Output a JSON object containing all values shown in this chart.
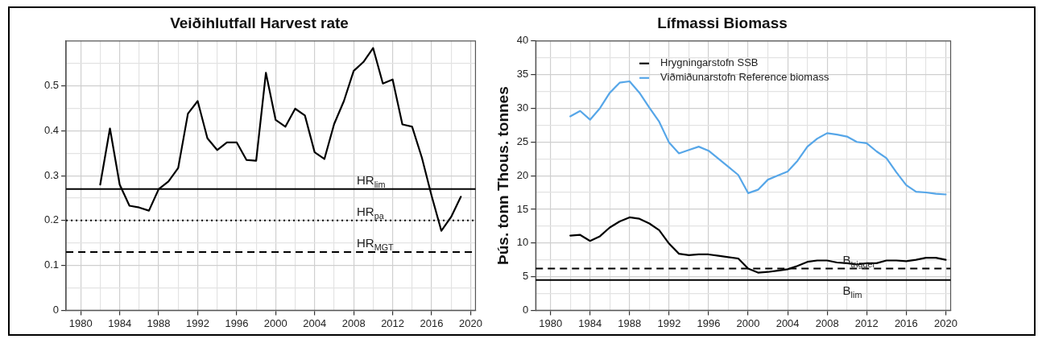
{
  "chart_data": [
    {
      "type": "line",
      "title": "Veiðihlutfall Harvest rate",
      "x": [
        1982,
        1983,
        1984,
        1985,
        1986,
        1987,
        1988,
        1989,
        1990,
        1991,
        1992,
        1993,
        1994,
        1995,
        1996,
        1997,
        1998,
        1999,
        2000,
        2001,
        2002,
        2003,
        2004,
        2005,
        2006,
        2007,
        2008,
        2009,
        2010,
        2011,
        2012,
        2013,
        2014,
        2015,
        2016,
        2017,
        2018,
        2019
      ],
      "series": [
        {
          "color": "#000000",
          "values": [
            0.28,
            0.405,
            0.28,
            0.233,
            0.229,
            0.222,
            0.27,
            0.287,
            0.317,
            0.438,
            0.466,
            0.383,
            0.357,
            0.374,
            0.374,
            0.335,
            0.333,
            0.529,
            0.424,
            0.409,
            0.449,
            0.434,
            0.352,
            0.337,
            0.415,
            0.466,
            0.533,
            0.553,
            0.584,
            0.505,
            0.514,
            0.414,
            0.409,
            0.34,
            0.255,
            0.177,
            0.208,
            0.253
          ]
        }
      ],
      "xlim": [
        1978.5,
        2020.5
      ],
      "xticks": [
        1980,
        {
          "value": 1982,
          "label": null
        },
        1984,
        {
          "value": 1986,
          "label": null
        },
        1988,
        {
          "value": 1990,
          "label": null
        },
        1992,
        {
          "value": 1994,
          "label": null
        },
        1996,
        {
          "value": 1998,
          "label": null
        },
        2000,
        {
          "value": 2002,
          "label": null
        },
        2004,
        {
          "value": 2006,
          "label": null
        },
        2008,
        {
          "value": 2010,
          "label": null
        },
        2012,
        {
          "value": 2014,
          "label": null
        },
        2016,
        {
          "value": 2018,
          "label": null
        },
        2020
      ],
      "ylim": [
        0,
        0.6
      ],
      "yticks": [
        0,
        {
          "value": 0.05,
          "label": null
        },
        0.1,
        {
          "value": 0.15,
          "label": null
        },
        0.2,
        {
          "value": 0.25,
          "label": null
        },
        0.3,
        {
          "value": 0.35,
          "label": null
        },
        0.4,
        {
          "value": 0.45,
          "label": null
        },
        0.5,
        {
          "value": 0.55,
          "label": null
        }
      ],
      "ref_lines": [
        {
          "axis": "y",
          "value": 0.27,
          "label": "HR$_{lim}$",
          "color": "#000000",
          "line_style": "solid"
        },
        {
          "axis": "y",
          "value": 0.2,
          "label": "HR$_{pa}$",
          "color": "#000000",
          "line_style": "dotted"
        },
        {
          "axis": "y",
          "value": 0.13,
          "label": "HR$_{MGT}$",
          "color": "#000000",
          "line_style": "dashed"
        }
      ],
      "grid": true,
      "legend": false,
      "marker": "none",
      "line_style": "solid"
    },
    {
      "type": "line",
      "title": "Lífmassi Biomass",
      "ylabel": "Þús. tonn Thous. tonnes",
      "x": [
        1982,
        1983,
        1984,
        1985,
        1986,
        1987,
        1988,
        1989,
        1990,
        1991,
        1992,
        1993,
        1994,
        1995,
        1996,
        1997,
        1998,
        1999,
        2000,
        2001,
        2002,
        2003,
        2004,
        2005,
        2006,
        2007,
        2008,
        2009,
        2010,
        2011,
        2012,
        2013,
        2014,
        2015,
        2016,
        2017,
        2018,
        2019,
        2020
      ],
      "series": [
        {
          "name": "Hrygningarstofn SSB",
          "color": "#000000",
          "values": [
            11.1,
            11.2,
            10.3,
            11.0,
            12.3,
            13.2,
            13.8,
            13.6,
            12.9,
            11.9,
            9.9,
            8.4,
            8.2,
            8.3,
            8.3,
            8.1,
            7.9,
            7.7,
            6.2,
            5.6,
            5.7,
            5.9,
            6.1,
            6.6,
            7.2,
            7.4,
            7.4,
            7.1,
            7.0,
            6.8,
            7.0,
            7.0,
            7.4,
            7.4,
            7.3,
            7.5,
            7.8,
            7.8,
            7.5
          ]
        },
        {
          "name": "Viðmiðunarstofn Reference biomass",
          "color": "#56a6e8",
          "values": [
            28.8,
            29.6,
            28.3,
            30.0,
            32.3,
            33.8,
            34.0,
            32.3,
            30.1,
            28.0,
            24.9,
            23.3,
            23.8,
            24.3,
            23.7,
            22.5,
            21.3,
            20.1,
            17.4,
            17.9,
            19.4,
            20.0,
            20.6,
            22.2,
            24.3,
            25.5,
            26.3,
            26.1,
            25.8,
            25.0,
            24.8,
            23.6,
            22.6,
            20.5,
            18.6,
            17.6,
            17.5,
            17.3,
            17.2
          ]
        }
      ],
      "xlim": [
        1978.5,
        2020.5
      ],
      "xticks": [
        1980,
        {
          "value": 1982,
          "label": null
        },
        1984,
        {
          "value": 1986,
          "label": null
        },
        1988,
        {
          "value": 1990,
          "label": null
        },
        1992,
        {
          "value": 1994,
          "label": null
        },
        1996,
        {
          "value": 1998,
          "label": null
        },
        2000,
        {
          "value": 2002,
          "label": null
        },
        2004,
        {
          "value": 2006,
          "label": null
        },
        2008,
        {
          "value": 2010,
          "label": null
        },
        2012,
        {
          "value": 2014,
          "label": null
        },
        2016,
        {
          "value": 2018,
          "label": null
        },
        2020
      ],
      "ylim": [
        0,
        40
      ],
      "yticks": [
        0,
        {
          "value": 2.5,
          "label": null
        },
        5,
        {
          "value": 7.5,
          "label": null
        },
        10,
        {
          "value": 12.5,
          "label": null
        },
        15,
        {
          "value": 17.5,
          "label": null
        },
        20,
        {
          "value": 22.5,
          "label": null
        },
        25,
        {
          "value": 27.5,
          "label": null
        },
        30,
        {
          "value": 32.5,
          "label": null
        },
        35,
        {
          "value": 37.5,
          "label": null
        },
        40
      ],
      "ref_lines": [
        {
          "axis": "y",
          "value": 6.2,
          "label": "B$_{trigger}$",
          "color": "#000000",
          "line_style": "dashed"
        },
        {
          "axis": "y",
          "value": 4.5,
          "label": "B$_{lim}$",
          "color": "#000000",
          "line_style": "solid"
        }
      ],
      "grid": true,
      "legend": "top left",
      "marker": "none",
      "line_style": "solid"
    }
  ]
}
